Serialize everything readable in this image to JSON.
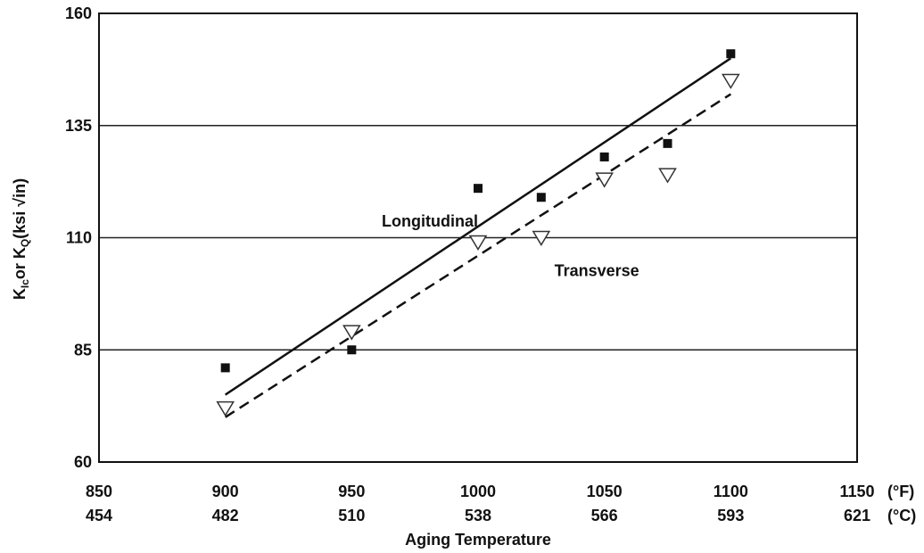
{
  "chart_data": {
    "type": "scatter",
    "xlabel": "Aging Temperature",
    "ylabel": {
      "parts": [
        {
          "text": "K",
          "sub": false
        },
        {
          "text": "Ic",
          "sub": true
        },
        {
          "text": "or K",
          "sub": false
        },
        {
          "text": "Q",
          "sub": true
        },
        {
          "text": "(ksi √in)",
          "sub": false
        }
      ]
    },
    "xlim": [
      850,
      1150
    ],
    "ylim": [
      60,
      160
    ],
    "grid": "horizontal",
    "x_ticks_f": [
      "850",
      "900",
      "950",
      "1000",
      "1050",
      "1100",
      "1150"
    ],
    "x_ticks_c": [
      "454",
      "482",
      "510",
      "538",
      "566",
      "593",
      "621"
    ],
    "x_unit_f": "(°F)",
    "x_unit_c": "(°C)",
    "y_ticks": [
      "60",
      "85",
      "110",
      "135",
      "160"
    ],
    "series": [
      {
        "name": "Longitudinal",
        "marker": "filled-square",
        "line_style": "solid",
        "points": [
          [
            900,
            81
          ],
          [
            950,
            85
          ],
          [
            1000,
            121
          ],
          [
            1025,
            119
          ],
          [
            1050,
            128
          ],
          [
            1075,
            131
          ],
          [
            1100,
            151
          ]
        ],
        "fit_line": [
          [
            900,
            75
          ],
          [
            1100,
            150
          ]
        ]
      },
      {
        "name": "Transverse",
        "marker": "open-triangle-down",
        "line_style": "dashed",
        "points": [
          [
            900,
            72
          ],
          [
            950,
            89
          ],
          [
            1000,
            109
          ],
          [
            1025,
            110
          ],
          [
            1050,
            123
          ],
          [
            1075,
            124
          ],
          [
            1100,
            145
          ]
        ],
        "fit_line": [
          [
            900,
            70
          ],
          [
            1100,
            142
          ]
        ]
      }
    ],
    "annotations": [
      {
        "text": "Longitudinal",
        "x": 1000,
        "y": 112.5
      },
      {
        "text": "Transverse",
        "x": 1047,
        "y": 101.5
      }
    ]
  }
}
